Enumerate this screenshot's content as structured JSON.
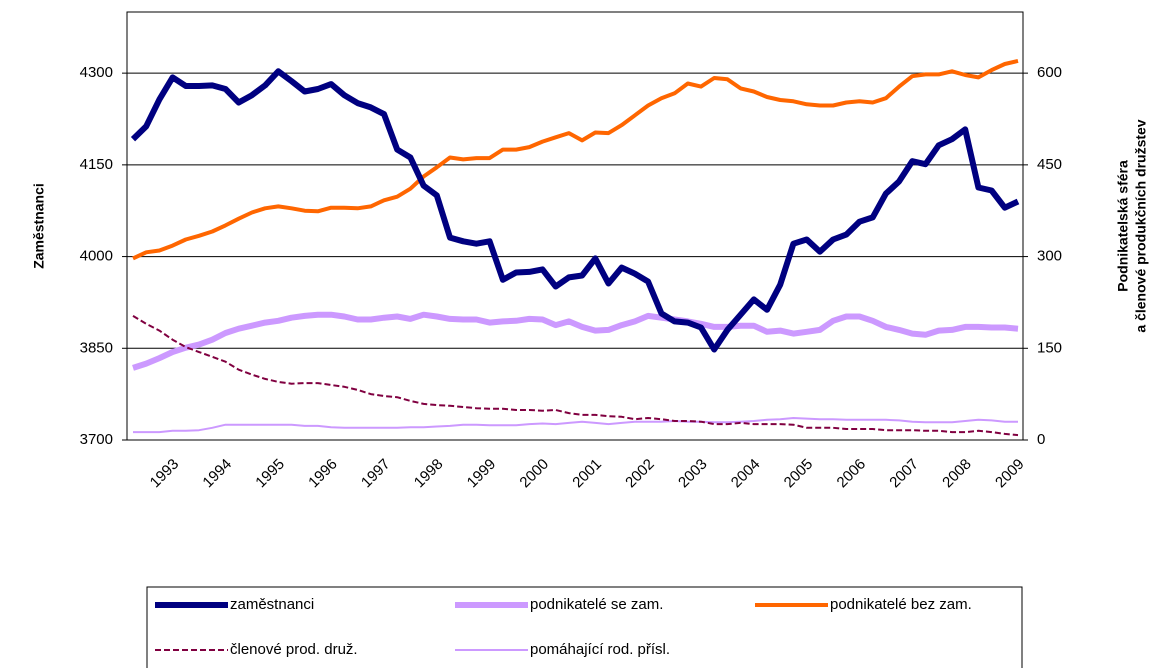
{
  "chart_data": {
    "type": "line",
    "ylabel": "Zaměstnanci",
    "y2label": [
      "Podnikatelská sféra",
      "a členové produkčních družstev"
    ],
    "categories": [
      null,
      null,
      null,
      "1993",
      null,
      null,
      null,
      "1994",
      null,
      null,
      null,
      "1995",
      null,
      null,
      null,
      "1996",
      null,
      null,
      null,
      "1997",
      null,
      null,
      null,
      "1998",
      null,
      null,
      null,
      "1999",
      null,
      null,
      null,
      "2000",
      null,
      null,
      null,
      "2001",
      null,
      null,
      null,
      "2002",
      null,
      null,
      null,
      "2003",
      null,
      null,
      null,
      "2004",
      null,
      null,
      null,
      "2005",
      null,
      null,
      null,
      "2006",
      null,
      null,
      null,
      "2007",
      null,
      null,
      null,
      "2008",
      null,
      null,
      null,
      "2009"
    ],
    "ylim": [
      3700,
      4400
    ],
    "yticks": [
      3700,
      3850,
      4000,
      4150,
      4300
    ],
    "y2lim": [
      0,
      700
    ],
    "y2ticks": [
      0,
      150,
      300,
      450,
      600
    ],
    "grid": true,
    "legend": "bottom",
    "series": [
      {
        "name": "zaměstnanci",
        "color": "#000080",
        "line_width": 6,
        "dashed": false,
        "values": [
          4192,
          4213,
          4257,
          4293,
          4279,
          4279,
          4280,
          4274,
          4252,
          4264,
          4280,
          4303,
          4287,
          4270,
          4274,
          4282,
          4264,
          4251,
          4244,
          4233,
          4175,
          4162,
          4116,
          4100,
          4031,
          4025,
          4021,
          4025,
          3962,
          3974,
          3975,
          3979,
          3951,
          3966,
          3969,
          3997,
          3956,
          3982,
          3972,
          3959,
          3907,
          3894,
          3892,
          3884,
          3848,
          3880,
          3905,
          3930,
          3913,
          3954,
          4021,
          4028,
          4008,
          4028,
          4036,
          4057,
          4064,
          4103,
          4123,
          4156,
          4151,
          4182,
          4192,
          4208,
          4113,
          4108,
          4080,
          4090
        ]
      },
      {
        "name": "podnikatelé se zam.",
        "color": "#cc99ff",
        "axis": "y2",
        "line_width": 6,
        "dashed": false,
        "values": [
          118,
          125,
          134,
          144,
          151,
          156,
          164,
          175,
          182,
          187,
          192,
          195,
          200,
          203,
          205,
          205,
          202,
          197,
          197,
          200,
          202,
          198,
          205,
          202,
          198,
          197,
          197,
          192,
          194,
          195,
          198,
          197,
          188,
          194,
          185,
          179,
          180,
          188,
          194,
          203,
          200,
          197,
          194,
          190,
          185,
          185,
          187,
          187,
          177,
          179,
          174,
          177,
          180,
          195,
          202,
          202,
          195,
          185,
          180,
          174,
          172,
          179,
          180,
          185,
          185,
          184,
          184,
          182
        ]
      },
      {
        "name": "podnikatelé bez zam.",
        "color": "#ff6600",
        "axis": "y2",
        "line_width": 4,
        "dashed": false,
        "values": [
          297,
          307,
          310,
          318,
          328,
          334,
          341,
          351,
          362,
          372,
          379,
          382,
          379,
          375,
          374,
          380,
          380,
          379,
          382,
          392,
          398,
          411,
          431,
          446,
          462,
          459,
          461,
          461,
          475,
          475,
          479,
          488,
          495,
          502,
          490,
          503,
          502,
          515,
          531,
          547,
          559,
          567,
          583,
          578,
          592,
          590,
          575,
          570,
          561,
          556,
          554,
          549,
          547,
          547,
          552,
          554,
          552,
          559,
          578,
          595,
          598,
          598,
          603,
          597,
          593,
          605,
          615,
          620
        ]
      },
      {
        "name": "členové prod. druž.",
        "color": "#800040",
        "axis": "y2",
        "line_width": 2,
        "dashed": true,
        "values": [
          203,
          190,
          179,
          164,
          152,
          144,
          136,
          128,
          115,
          107,
          100,
          95,
          92,
          93,
          93,
          90,
          87,
          82,
          75,
          72,
          70,
          64,
          59,
          57,
          56,
          54,
          52,
          51,
          51,
          49,
          49,
          48,
          49,
          44,
          41,
          41,
          39,
          38,
          34,
          36,
          34,
          31,
          31,
          30,
          26,
          26,
          28,
          26,
          26,
          26,
          25,
          20,
          20,
          20,
          18,
          18,
          18,
          16,
          16,
          16,
          15,
          15,
          13,
          13,
          15,
          13,
          10,
          8
        ]
      },
      {
        "name": "pomáhající rod. přísl.",
        "color": "#cc99ff",
        "axis": "y2",
        "line_width": 2,
        "dashed": false,
        "values": [
          13,
          13,
          13,
          15,
          15,
          16,
          20,
          25,
          25,
          25,
          25,
          25,
          25,
          23,
          23,
          21,
          20,
          20,
          20,
          20,
          20,
          21,
          21,
          22,
          23,
          25,
          25,
          24,
          24,
          24,
          26,
          27,
          26,
          28,
          30,
          28,
          26,
          28,
          30,
          30,
          30,
          31,
          30,
          30,
          29,
          29,
          30,
          31,
          33,
          34,
          36,
          35,
          34,
          34,
          33,
          33,
          33,
          33,
          32,
          30,
          29,
          29,
          29,
          31,
          33,
          32,
          30,
          30
        ]
      }
    ]
  }
}
